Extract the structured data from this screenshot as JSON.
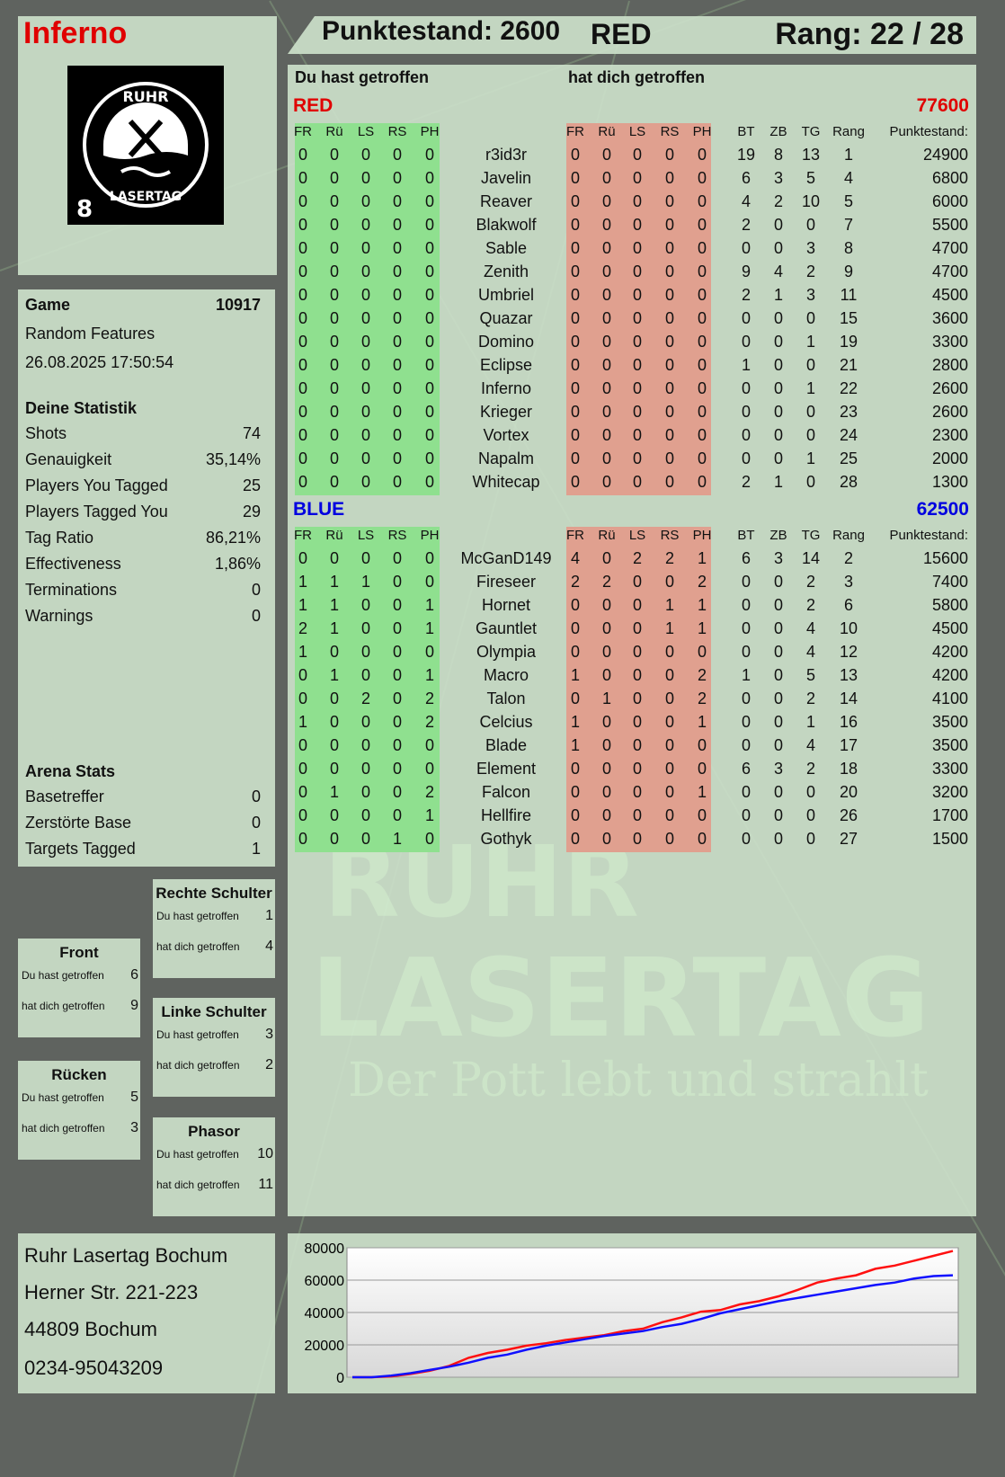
{
  "header": {
    "player_name": "Inferno",
    "score_label": "Punktestand: 2600",
    "team": "RED",
    "rank_label": "Rang: 22 / 28"
  },
  "logo": {
    "text_top": "RUHR",
    "text_bottom": "LASERTAG",
    "badge": "8"
  },
  "watermark": {
    "line1": "RUHR",
    "line2": "LASERTAG",
    "line3": "Der Pott lebt und strahlt"
  },
  "game": {
    "label": "Game",
    "number": "10917",
    "mode": "Random Features",
    "datetime": "26.08.2025 17:50:54"
  },
  "stats": {
    "title": "Deine Statistik",
    "items": [
      {
        "label": "Shots",
        "value": "74"
      },
      {
        "label": "Genauigkeit",
        "value": "35,14%"
      },
      {
        "label": "Players You Tagged",
        "value": "25"
      },
      {
        "label": "Players Tagged You",
        "value": "29"
      },
      {
        "label": "Tag Ratio",
        "value": "86,21%"
      },
      {
        "label": "Effectiveness",
        "value": "1,86%"
      },
      {
        "label": "Terminations",
        "value": "0"
      },
      {
        "label": "Warnings",
        "value": "0"
      }
    ]
  },
  "arena": {
    "title": "Arena Stats",
    "items": [
      {
        "label": "Basetreffer",
        "value": "0"
      },
      {
        "label": "Zerstörte Base",
        "value": "0"
      },
      {
        "label": "Targets Tagged",
        "value": "1"
      }
    ]
  },
  "zones": [
    {
      "title": "Rechte Schulter",
      "hit_label": "Du hast getroffen",
      "hit": "1",
      "got_label": "hat dich getroffen",
      "got": "4"
    },
    {
      "title": "Front",
      "hit_label": "Du hast getroffen",
      "hit": "6",
      "got_label": "hat dich getroffen",
      "got": "9"
    },
    {
      "title": "Linke Schulter",
      "hit_label": "Du hast getroffen",
      "hit": "3",
      "got_label": "hat dich getroffen",
      "got": "2"
    },
    {
      "title": "Rücken",
      "hit_label": "Du hast getroffen",
      "hit": "5",
      "got_label": "hat dich getroffen",
      "got": "3"
    },
    {
      "title": "Phasor",
      "hit_label": "Du hast getroffen",
      "hit": "10",
      "got_label": "hat dich getroffen",
      "got": "11"
    }
  ],
  "address": {
    "line1": "Ruhr Lasertag Bochum",
    "line2": "Herner Str. 221-223",
    "line3": "44809 Bochum",
    "line4": "0234-95043209"
  },
  "table": {
    "hit_header": "Du hast getroffen",
    "got_header": "hat dich getroffen",
    "columns": [
      "FR",
      "Rü",
      "LS",
      "RS",
      "PH",
      "",
      "FR",
      "Rü",
      "LS",
      "RS",
      "PH",
      "BT",
      "ZB",
      "TG",
      "Rang",
      "Punktestand:"
    ],
    "colors": {
      "hit_bg": "#8fe08f",
      "got_bg": "#e0a08f",
      "red": "#e00000",
      "blue": "#0000e0"
    },
    "teams": [
      {
        "name": "RED",
        "score": "77600",
        "color": "#e00000",
        "rows": [
          [
            "0",
            "0",
            "0",
            "0",
            "0",
            "r3id3r",
            "0",
            "0",
            "0",
            "0",
            "0",
            "19",
            "8",
            "13",
            "1",
            "24900"
          ],
          [
            "0",
            "0",
            "0",
            "0",
            "0",
            "Javelin",
            "0",
            "0",
            "0",
            "0",
            "0",
            "6",
            "3",
            "5",
            "4",
            "6800"
          ],
          [
            "0",
            "0",
            "0",
            "0",
            "0",
            "Reaver",
            "0",
            "0",
            "0",
            "0",
            "0",
            "4",
            "2",
            "10",
            "5",
            "6000"
          ],
          [
            "0",
            "0",
            "0",
            "0",
            "0",
            "Blakwolf",
            "0",
            "0",
            "0",
            "0",
            "0",
            "2",
            "0",
            "0",
            "7",
            "5500"
          ],
          [
            "0",
            "0",
            "0",
            "0",
            "0",
            "Sable",
            "0",
            "0",
            "0",
            "0",
            "0",
            "0",
            "0",
            "3",
            "8",
            "4700"
          ],
          [
            "0",
            "0",
            "0",
            "0",
            "0",
            "Zenith",
            "0",
            "0",
            "0",
            "0",
            "0",
            "9",
            "4",
            "2",
            "9",
            "4700"
          ],
          [
            "0",
            "0",
            "0",
            "0",
            "0",
            "Umbriel",
            "0",
            "0",
            "0",
            "0",
            "0",
            "2",
            "1",
            "3",
            "11",
            "4500"
          ],
          [
            "0",
            "0",
            "0",
            "0",
            "0",
            "Quazar",
            "0",
            "0",
            "0",
            "0",
            "0",
            "0",
            "0",
            "0",
            "15",
            "3600"
          ],
          [
            "0",
            "0",
            "0",
            "0",
            "0",
            "Domino",
            "0",
            "0",
            "0",
            "0",
            "0",
            "0",
            "0",
            "1",
            "19",
            "3300"
          ],
          [
            "0",
            "0",
            "0",
            "0",
            "0",
            "Eclipse",
            "0",
            "0",
            "0",
            "0",
            "0",
            "1",
            "0",
            "0",
            "21",
            "2800"
          ],
          [
            "0",
            "0",
            "0",
            "0",
            "0",
            "Inferno",
            "0",
            "0",
            "0",
            "0",
            "0",
            "0",
            "0",
            "1",
            "22",
            "2600"
          ],
          [
            "0",
            "0",
            "0",
            "0",
            "0",
            "Krieger",
            "0",
            "0",
            "0",
            "0",
            "0",
            "0",
            "0",
            "0",
            "23",
            "2600"
          ],
          [
            "0",
            "0",
            "0",
            "0",
            "0",
            "Vortex",
            "0",
            "0",
            "0",
            "0",
            "0",
            "0",
            "0",
            "0",
            "24",
            "2300"
          ],
          [
            "0",
            "0",
            "0",
            "0",
            "0",
            "Napalm",
            "0",
            "0",
            "0",
            "0",
            "0",
            "0",
            "0",
            "1",
            "25",
            "2000"
          ],
          [
            "0",
            "0",
            "0",
            "0",
            "0",
            "Whitecap",
            "0",
            "0",
            "0",
            "0",
            "0",
            "2",
            "1",
            "0",
            "28",
            "1300"
          ]
        ]
      },
      {
        "name": "BLUE",
        "score": "62500",
        "color": "#0000e0",
        "rows": [
          [
            "0",
            "0",
            "0",
            "0",
            "0",
            "McGanD149",
            "4",
            "0",
            "2",
            "2",
            "1",
            "6",
            "3",
            "14",
            "2",
            "15600"
          ],
          [
            "1",
            "1",
            "1",
            "0",
            "0",
            "Fireseer",
            "2",
            "2",
            "0",
            "0",
            "2",
            "0",
            "0",
            "2",
            "3",
            "7400"
          ],
          [
            "1",
            "1",
            "0",
            "0",
            "1",
            "Hornet",
            "0",
            "0",
            "0",
            "1",
            "1",
            "0",
            "0",
            "2",
            "6",
            "5800"
          ],
          [
            "2",
            "1",
            "0",
            "0",
            "1",
            "Gauntlet",
            "0",
            "0",
            "0",
            "1",
            "1",
            "0",
            "0",
            "4",
            "10",
            "4500"
          ],
          [
            "1",
            "0",
            "0",
            "0",
            "0",
            "Olympia",
            "0",
            "0",
            "0",
            "0",
            "0",
            "0",
            "0",
            "4",
            "12",
            "4200"
          ],
          [
            "0",
            "1",
            "0",
            "0",
            "1",
            "Macro",
            "1",
            "0",
            "0",
            "0",
            "2",
            "1",
            "0",
            "5",
            "13",
            "4200"
          ],
          [
            "0",
            "0",
            "2",
            "0",
            "2",
            "Talon",
            "0",
            "1",
            "0",
            "0",
            "2",
            "0",
            "0",
            "2",
            "14",
            "4100"
          ],
          [
            "1",
            "0",
            "0",
            "0",
            "2",
            "Celcius",
            "1",
            "0",
            "0",
            "0",
            "1",
            "0",
            "0",
            "1",
            "16",
            "3500"
          ],
          [
            "0",
            "0",
            "0",
            "0",
            "0",
            "Blade",
            "1",
            "0",
            "0",
            "0",
            "0",
            "0",
            "0",
            "4",
            "17",
            "3500"
          ],
          [
            "0",
            "0",
            "0",
            "0",
            "0",
            "Element",
            "0",
            "0",
            "0",
            "0",
            "0",
            "6",
            "3",
            "2",
            "18",
            "3300"
          ],
          [
            "0",
            "1",
            "0",
            "0",
            "2",
            "Falcon",
            "0",
            "0",
            "0",
            "0",
            "1",
            "0",
            "0",
            "0",
            "20",
            "3200"
          ],
          [
            "0",
            "0",
            "0",
            "0",
            "1",
            "Hellfire",
            "0",
            "0",
            "0",
            "0",
            "0",
            "0",
            "0",
            "0",
            "26",
            "1700"
          ],
          [
            "0",
            "0",
            "0",
            "1",
            "0",
            "Gothyk",
            "0",
            "0",
            "0",
            "0",
            "0",
            "0",
            "0",
            "0",
            "27",
            "1500"
          ]
        ]
      }
    ]
  },
  "chart_data": {
    "type": "line",
    "ylim": [
      0,
      80000
    ],
    "yticks": [
      "80000",
      "60000",
      "40000",
      "20000",
      "0"
    ],
    "grid": true,
    "series": [
      {
        "color": "#ff1010",
        "values": [
          0,
          0,
          500,
          2000,
          4000,
          7000,
          12000,
          15000,
          17000,
          19500,
          21000,
          23000,
          24500,
          26000,
          28500,
          30000,
          34000,
          37000,
          40500,
          41500,
          45000,
          47000,
          50000,
          54000,
          58500,
          61000,
          63000,
          67000,
          69000,
          72000,
          75000,
          78000
        ]
      },
      {
        "color": "#1010ff",
        "values": [
          0,
          0,
          1000,
          2500,
          4500,
          6500,
          9000,
          12000,
          14000,
          17000,
          19500,
          21500,
          23500,
          25500,
          27000,
          28500,
          31000,
          33000,
          36000,
          39500,
          42000,
          44500,
          47000,
          49000,
          51000,
          53000,
          55000,
          57000,
          58500,
          61000,
          62500,
          63000
        ]
      }
    ]
  }
}
